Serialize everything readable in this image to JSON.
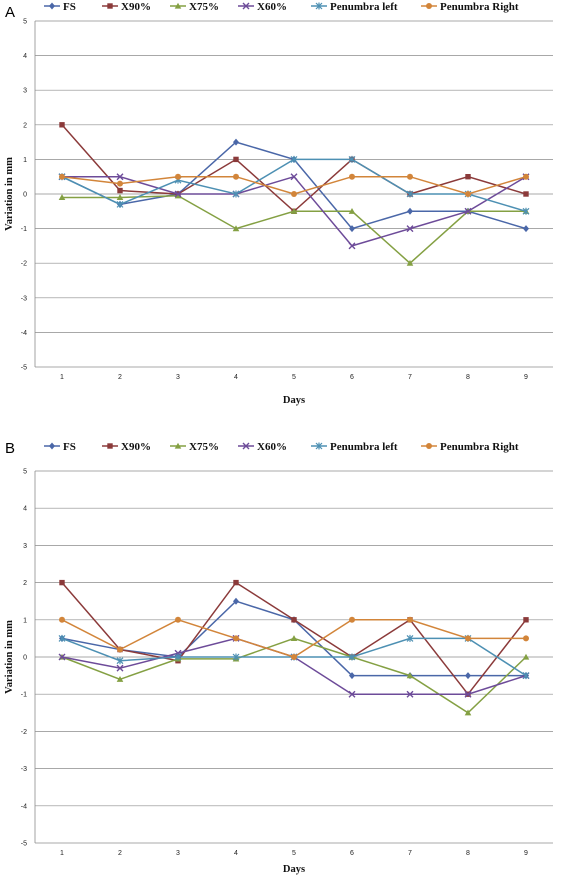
{
  "chart_data": [
    {
      "panel_label": "A",
      "type": "line",
      "xlabel": "Days",
      "ylabel": "Variation in mm",
      "x": [
        1,
        2,
        3,
        4,
        5,
        6,
        7,
        8,
        9
      ],
      "ylim": [
        -5,
        5
      ],
      "yticks": [
        5,
        4,
        3,
        2,
        1,
        0,
        -1,
        -2,
        -3,
        -4,
        -5
      ],
      "grid": true,
      "legend_position": "top",
      "series": [
        {
          "name": "FS",
          "color": "#4a67a8",
          "marker": "diamond",
          "values": [
            0.5,
            -0.3,
            0.0,
            1.5,
            1.0,
            -1.0,
            -0.5,
            -0.5,
            -1.0
          ]
        },
        {
          "name": "X90%",
          "color": "#8b3a3a",
          "marker": "square",
          "values": [
            2.0,
            0.1,
            0.0,
            1.0,
            -0.5,
            1.0,
            0.0,
            0.5,
            0.0
          ]
        },
        {
          "name": "X75%",
          "color": "#84a043",
          "marker": "triangle",
          "values": [
            -0.1,
            -0.1,
            -0.05,
            -1.0,
            -0.5,
            -0.5,
            -2.0,
            -0.5,
            -0.5
          ]
        },
        {
          "name": "X60%",
          "color": "#6d4b99",
          "marker": "x",
          "values": [
            0.5,
            0.5,
            0.0,
            0.0,
            0.5,
            -1.5,
            -1.0,
            -0.5,
            0.5
          ]
        },
        {
          "name": "Penumbra left",
          "color": "#4d90b3",
          "marker": "star",
          "values": [
            0.5,
            -0.3,
            0.4,
            0.0,
            1.0,
            1.0,
            0.0,
            0.0,
            -0.5
          ]
        },
        {
          "name": "Penumbra Right",
          "color": "#d2853a",
          "marker": "circle",
          "values": [
            0.5,
            0.3,
            0.5,
            0.5,
            0.0,
            0.5,
            0.5,
            0.0,
            0.5
          ]
        }
      ]
    },
    {
      "panel_label": "B",
      "type": "line",
      "xlabel": "Days",
      "ylabel": "Variation in mm",
      "x": [
        1,
        2,
        3,
        4,
        5,
        6,
        7,
        8,
        9
      ],
      "ylim": [
        -5,
        5
      ],
      "yticks": [
        5,
        4,
        3,
        2,
        1,
        0,
        -1,
        -2,
        -3,
        -4,
        -5
      ],
      "grid": true,
      "legend_position": "top",
      "series": [
        {
          "name": "FS",
          "color": "#4a67a8",
          "marker": "diamond",
          "values": [
            0.5,
            0.2,
            0.0,
            1.5,
            1.0,
            -0.5,
            -0.5,
            -0.5,
            -0.5
          ]
        },
        {
          "name": "X90%",
          "color": "#8b3a3a",
          "marker": "square",
          "values": [
            2.0,
            0.2,
            -0.1,
            2.0,
            1.0,
            0.0,
            1.0,
            -1.0,
            1.0
          ]
        },
        {
          "name": "X75%",
          "color": "#84a043",
          "marker": "triangle",
          "values": [
            0.0,
            -0.6,
            -0.05,
            -0.05,
            0.5,
            0.0,
            -0.5,
            -1.5,
            0.0
          ]
        },
        {
          "name": "X60%",
          "color": "#6d4b99",
          "marker": "x",
          "values": [
            0.0,
            -0.3,
            0.1,
            0.5,
            0.0,
            -1.0,
            -1.0,
            -1.0,
            -0.5
          ]
        },
        {
          "name": "Penumbra left",
          "color": "#4d90b3",
          "marker": "star",
          "values": [
            0.5,
            -0.1,
            0.0,
            0.0,
            0.0,
            0.0,
            0.5,
            0.5,
            -0.5
          ]
        },
        {
          "name": "Penumbra Right",
          "color": "#d2853a",
          "marker": "circle",
          "values": [
            1.0,
            0.2,
            1.0,
            0.5,
            0.0,
            1.0,
            1.0,
            0.5,
            0.5
          ]
        }
      ]
    }
  ]
}
